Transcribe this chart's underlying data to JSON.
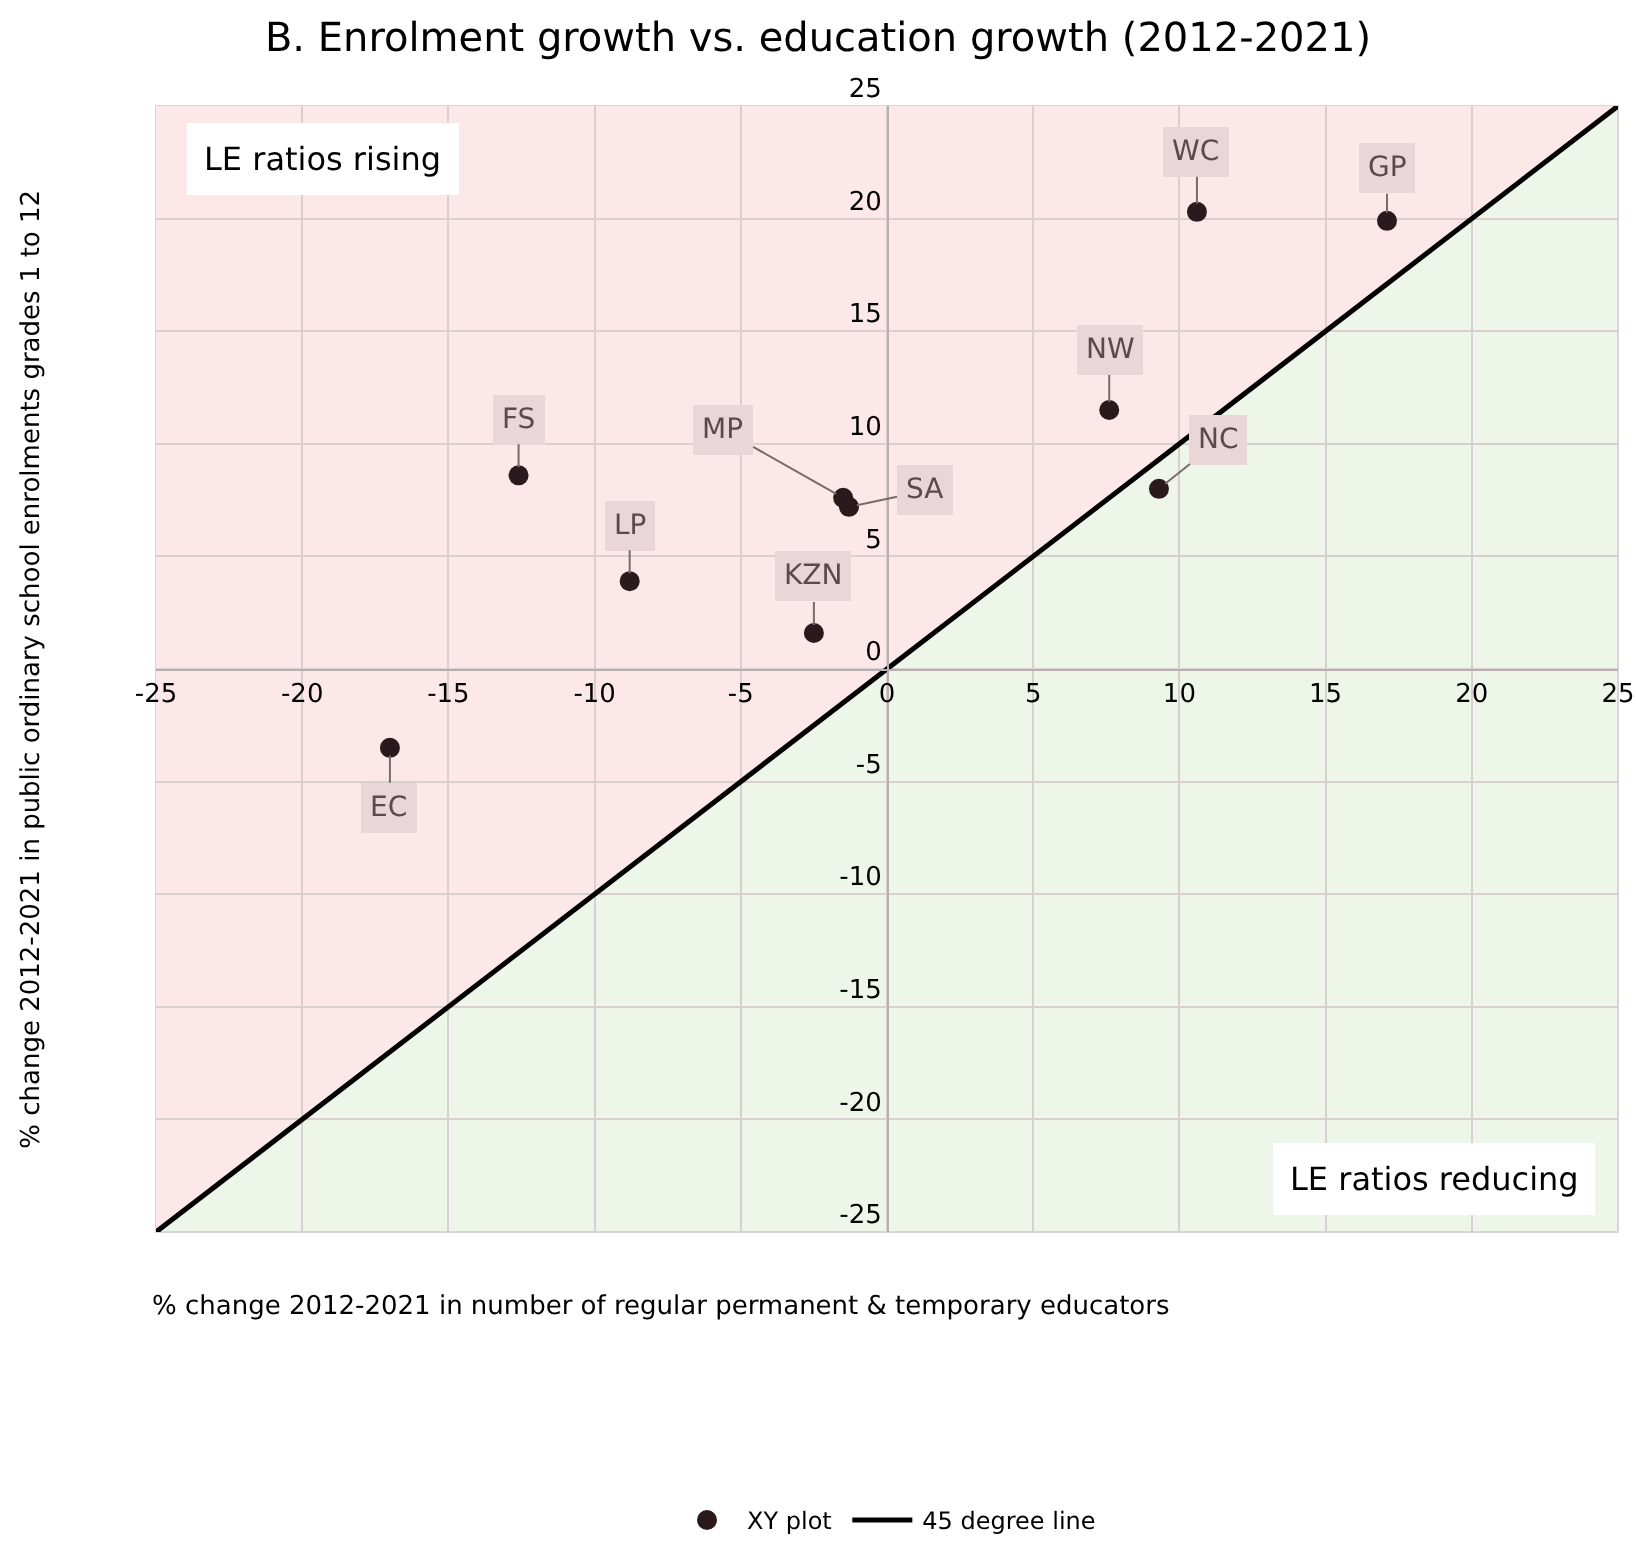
{
  "chart_data": {
    "type": "scatter",
    "title": "B. Enrolment growth vs. education growth (2012-2021)",
    "xlabel": "% change 2012-2021 in number of regular permanent & temporary educators",
    "ylabel": "% change 2012-2021 in public ordinary school enrolments grades 1 to 12",
    "series": [
      {
        "name": "XY plot",
        "marker": "circle",
        "color": "#2b1a1d",
        "x": [
          -12.6,
          -8.8,
          -2.5,
          -1.5,
          -1.3,
          10.6,
          17.1,
          7.6,
          9.3,
          -17.0
        ],
        "values": [
          8.6,
          3.9,
          1.6,
          7.6,
          7.2,
          20.3,
          19.9,
          11.5,
          8.0,
          -3.5
        ]
      },
      {
        "name": "45 degree line",
        "type": "line",
        "marker": "none",
        "color": "#000000",
        "x": [
          -25,
          25
        ],
        "values": [
          -25,
          25
        ]
      }
    ],
    "annotations": [
      {
        "text": "FS",
        "x": -12.6,
        "y": 8.6
      },
      {
        "text": "LP",
        "x": -8.8,
        "y": 3.9
      },
      {
        "text": "KZN",
        "x": -2.5,
        "y": 1.6
      },
      {
        "text": "MP",
        "x": -1.5,
        "y": 7.6
      },
      {
        "text": "SA",
        "x": -1.3,
        "y": 7.2
      },
      {
        "text": "WC",
        "x": 10.6,
        "y": 20.3
      },
      {
        "text": "GP",
        "x": 17.1,
        "y": 19.9
      },
      {
        "text": "NW",
        "x": 7.6,
        "y": 11.5
      },
      {
        "text": "NC",
        "x": 9.3,
        "y": 8.0
      },
      {
        "text": "EC",
        "x": -17.0,
        "y": -3.5
      },
      "LE ratios rising",
      "LE ratios reducing"
    ],
    "xlim": [
      -25,
      25
    ],
    "ylim": [
      -25,
      25
    ],
    "xticks": [
      -25,
      -20,
      -15,
      -10,
      -5,
      0,
      5,
      10,
      15,
      20,
      25
    ],
    "yticks": [
      -25,
      -20,
      -15,
      -10,
      -5,
      0,
      5,
      10,
      15,
      20,
      25
    ],
    "grid": true,
    "legend": "bottom",
    "line_style": "solid"
  }
}
